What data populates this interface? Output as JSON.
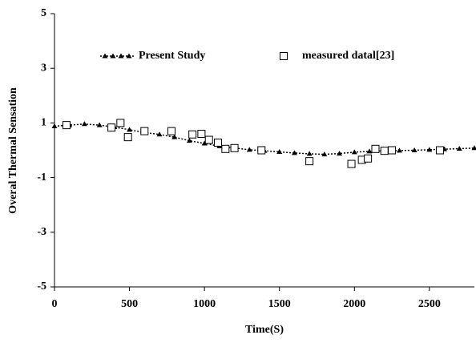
{
  "chart_data": {
    "type": "line",
    "x_label": "Time(S)",
    "y_label": "Overal Thermal Sensation",
    "xlim": [
      0,
      2800
    ],
    "xticks": [
      0,
      500,
      1000,
      1500,
      2000,
      2500
    ],
    "ylim": [
      -5,
      5
    ],
    "yticks": [
      5,
      3,
      1,
      -1,
      -3,
      -5
    ],
    "legend": "top",
    "series": [
      {
        "name": "Present Study",
        "color": "#000000",
        "marker": "triangle",
        "line_style": "dotted",
        "x": [
          0,
          100,
          200,
          300,
          400,
          500,
          600,
          700,
          800,
          900,
          1000,
          1100,
          1200,
          1300,
          1400,
          1500,
          1600,
          1700,
          1800,
          1900,
          2000,
          2100,
          2200,
          2300,
          2400,
          2500,
          2600,
          2700,
          2800
        ],
        "values": [
          0.88,
          0.92,
          0.96,
          0.92,
          0.85,
          0.75,
          0.65,
          0.58,
          0.48,
          0.35,
          0.25,
          0.15,
          0.08,
          0.02,
          -0.02,
          -0.06,
          -0.1,
          -0.13,
          -0.15,
          -0.12,
          -0.07,
          -0.04,
          -0.02,
          -0.01,
          0.0,
          0.02,
          0.04,
          0.06,
          0.08
        ]
      },
      {
        "name": "measured datal[23]",
        "color": "#000000",
        "marker": "square-open",
        "line_style": "none",
        "x": [
          80,
          380,
          440,
          490,
          600,
          780,
          920,
          980,
          1030,
          1090,
          1140,
          1200,
          1380,
          1700,
          1980,
          2050,
          2090,
          2140,
          2200,
          2250,
          2570
        ],
        "values": [
          0.92,
          0.83,
          1.0,
          0.48,
          0.7,
          0.7,
          0.58,
          0.6,
          0.38,
          0.28,
          0.05,
          0.08,
          0.0,
          -0.4,
          -0.5,
          -0.35,
          -0.3,
          0.05,
          -0.02,
          0.0,
          0.0
        ]
      }
    ]
  }
}
